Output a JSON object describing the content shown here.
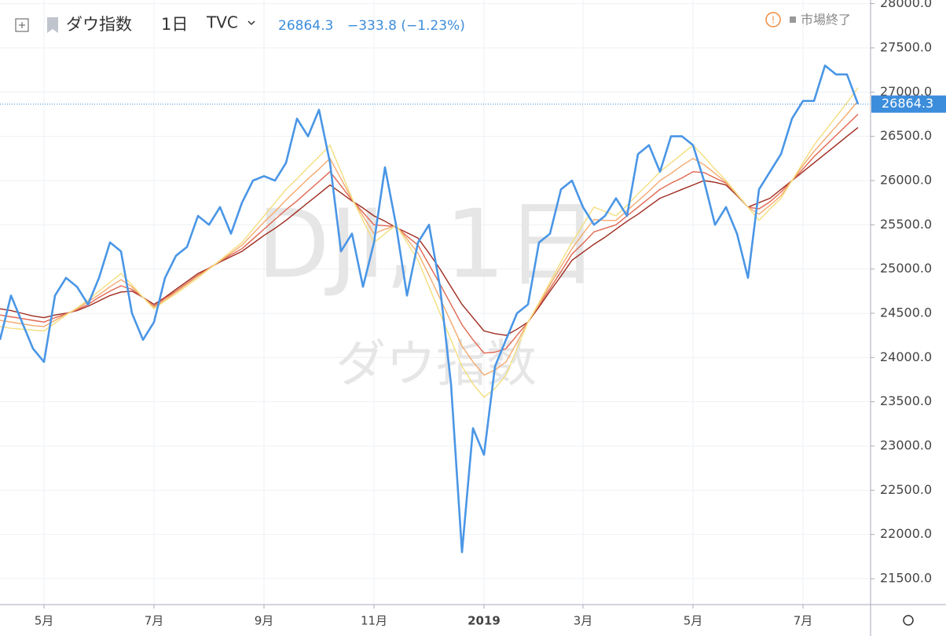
{
  "header": {
    "symbol": "ダウ指数",
    "interval": "1日",
    "exchange": "TVC",
    "last": 26864.3,
    "change": "−333.8 (−1.23%)",
    "status": "市場終了"
  },
  "watermark": {
    "symbol": "DJI, 1日",
    "name": "ダウ指数"
  },
  "chart_data": {
    "type": "line",
    "categories": [
      null,
      null,
      null,
      null,
      "5月",
      null,
      null,
      null,
      null,
      null,
      null,
      null,
      null,
      null,
      "7月",
      null,
      null,
      null,
      null,
      null,
      null,
      null,
      null,
      null,
      "9月",
      null,
      null,
      null,
      null,
      null,
      null,
      null,
      null,
      null,
      "11月",
      null,
      null,
      null,
      null,
      null,
      null,
      null,
      null,
      null,
      "2019",
      null,
      null,
      null,
      null,
      null,
      null,
      null,
      null,
      "3月",
      null,
      null,
      null,
      null,
      null,
      null,
      null,
      null,
      null,
      "5月",
      null,
      null,
      null,
      null,
      null,
      null,
      null,
      null,
      null,
      "7月",
      null,
      null,
      null,
      null,
      null
    ],
    "series": [
      {
        "color": "#9e2a1e",
        "values": [
          24550,
          24530,
          24500,
          24470,
          24450,
          24480,
          24500,
          24530,
          24580,
          24640,
          24700,
          24740,
          24750,
          24680,
          24600,
          24680,
          24770,
          24860,
          24950,
          25010,
          25080,
          25140,
          25200,
          25290,
          25380,
          25460,
          25550,
          25650,
          25750,
          25850,
          25950,
          25860,
          25770,
          25690,
          25600,
          25540,
          25470,
          25410,
          25350,
          25180,
          25000,
          24800,
          24600,
          24450,
          24300,
          24270,
          24250,
          24320,
          24400,
          24570,
          24750,
          24920,
          25100,
          25190,
          25280,
          25360,
          25450,
          25540,
          25620,
          25710,
          25800,
          25850,
          25900,
          25950,
          26000,
          25980,
          25950,
          25830,
          25700,
          25750,
          25800,
          25900,
          26000,
          26100,
          26200,
          26300,
          26400,
          26500,
          26600
        ]
      },
      {
        "color": "#e0664f",
        "values": [
          24480,
          24460,
          24440,
          24420,
          24400,
          24450,
          24490,
          24540,
          24600,
          24680,
          24750,
          24810,
          24770,
          24680,
          24580,
          24670,
          24750,
          24840,
          24930,
          25010,
          25090,
          25160,
          25230,
          25340,
          25450,
          25560,
          25670,
          25770,
          25880,
          25990,
          26100,
          25940,
          25780,
          25640,
          25500,
          25490,
          25480,
          25370,
          25270,
          25050,
          24830,
          24600,
          24370,
          24200,
          24050,
          24060,
          24100,
          24250,
          24400,
          24590,
          24780,
          24970,
          25170,
          25290,
          25420,
          25460,
          25500,
          25600,
          25700,
          25800,
          25900,
          25970,
          26030,
          26100,
          26090,
          26030,
          25970,
          25840,
          25700,
          25680,
          25760,
          25870,
          26000,
          26130,
          26270,
          26390,
          26510,
          26630,
          26750
        ]
      },
      {
        "color": "#f4a96e",
        "values": [
          24420,
          24400,
          24380,
          24360,
          24350,
          24420,
          24490,
          24550,
          24630,
          24710,
          24800,
          24880,
          24800,
          24680,
          24570,
          24650,
          24740,
          24830,
          24920,
          25000,
          25090,
          25180,
          25270,
          25400,
          25530,
          25650,
          25780,
          25900,
          26020,
          26130,
          26250,
          26020,
          25790,
          25600,
          25400,
          25450,
          25490,
          25340,
          25180,
          24930,
          24670,
          24400,
          24130,
          23950,
          23800,
          23860,
          23950,
          24170,
          24400,
          24600,
          24820,
          25030,
          25230,
          25400,
          25560,
          25550,
          25550,
          25660,
          25770,
          25880,
          26000,
          26080,
          26170,
          26250,
          26180,
          26080,
          25980,
          25840,
          25700,
          25620,
          25720,
          25830,
          26000,
          26170,
          26330,
          26470,
          26610,
          26750,
          26900
        ]
      },
      {
        "color": "#f3de7e",
        "values": [
          24350,
          24330,
          24320,
          24310,
          24300,
          24390,
          24480,
          24560,
          24650,
          24750,
          24850,
          24950,
          24820,
          24680,
          24550,
          24640,
          24720,
          24810,
          24900,
          25000,
          25100,
          25200,
          25300,
          25450,
          25600,
          25750,
          25900,
          26020,
          26150,
          26270,
          26400,
          26100,
          25800,
          25550,
          25300,
          25400,
          25500,
          25300,
          25100,
          24800,
          24500,
          24200,
          23900,
          23700,
          23550,
          23650,
          23800,
          24100,
          24400,
          24620,
          24850,
          25080,
          25300,
          25500,
          25700,
          25650,
          25600,
          25720,
          25850,
          25970,
          26100,
          26200,
          26300,
          26400,
          26270,
          26130,
          26000,
          25850,
          25700,
          25550,
          25680,
          25800,
          26000,
          26200,
          26400,
          26560,
          26720,
          26880,
          27050
        ]
      },
      {
        "color": "#4a96e6",
        "values": [
          24200,
          24700,
          24400,
          24100,
          23950,
          24700,
          24900,
          24800,
          24600,
          24900,
          25300,
          25200,
          24500,
          24200,
          24400,
          24900,
          25150,
          25250,
          25600,
          25500,
          25700,
          25400,
          25750,
          26000,
          26050,
          26000,
          26200,
          26700,
          26500,
          26800,
          26200,
          25200,
          25400,
          24800,
          25300,
          26150,
          25500,
          24700,
          25300,
          25500,
          24800,
          23700,
          21800,
          23200,
          22900,
          23900,
          24200,
          24500,
          24600,
          25300,
          25400,
          25900,
          26000,
          25700,
          25500,
          25600,
          25800,
          25600,
          26300,
          26400,
          26100,
          26500,
          26500,
          26400,
          26000,
          25500,
          25700,
          25400,
          24900,
          25900,
          26100,
          26300,
          26700,
          26900,
          26900,
          27300,
          27200,
          27200,
          26864.3
        ]
      }
    ],
    "ylim": [
      21207,
      28041
    ],
    "yticks": [
      {
        "value": 21500,
        "label": "21500.0"
      },
      {
        "value": 22000,
        "label": "22000.0"
      },
      {
        "value": 22500,
        "label": "22500.0"
      },
      {
        "value": 23000,
        "label": "23000.0"
      },
      {
        "value": 23500,
        "label": "23500.0"
      },
      {
        "value": 24000,
        "label": "24000.0"
      },
      {
        "value": 24500,
        "label": "24500.0"
      },
      {
        "value": 25000,
        "label": "25000.0"
      },
      {
        "value": 25500,
        "label": "25500.0"
      },
      {
        "value": 26000,
        "label": "26000.0"
      },
      {
        "value": 26500,
        "label": "26500.0"
      },
      {
        "value": 27000,
        "label": "27000.0"
      },
      {
        "value": 27500,
        "label": "27500.0"
      },
      {
        "value": 28000,
        "label": "28000.0"
      }
    ],
    "grid": true
  }
}
